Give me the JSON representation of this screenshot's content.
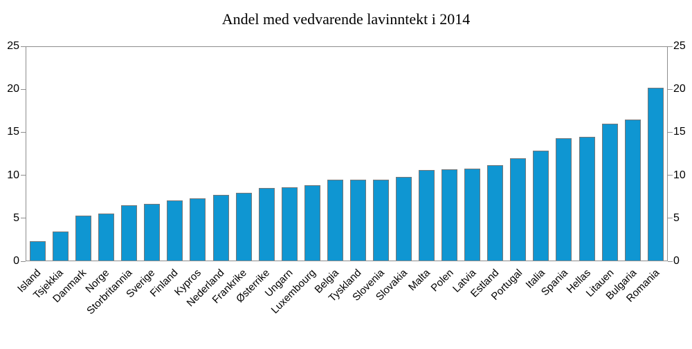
{
  "chart_data": {
    "type": "bar",
    "title": "Andel med vedvarende lavinntekt i 2014",
    "xlabel": "",
    "ylabel": "",
    "categories": [
      "Island",
      "Tsjekkia",
      "Danmark",
      "Norge",
      "Storbritannia",
      "Sverige",
      "Finland",
      "Kypros",
      "Nederland",
      "Frankrike",
      "Østerrike",
      "Ungarn",
      "Luxembourg",
      "Belgia",
      "Tyskland",
      "Slovenia",
      "Slovakia",
      "Malta",
      "Polen",
      "Latvia",
      "Estland",
      "Portugal",
      "Italia",
      "Spania",
      "Hellas",
      "Litauen",
      "Bulgaria",
      "Romania"
    ],
    "values": [
      2.3,
      3.4,
      5.3,
      5.5,
      6.5,
      6.6,
      7.0,
      7.3,
      7.7,
      7.9,
      8.5,
      8.6,
      8.8,
      9.5,
      9.5,
      9.5,
      9.8,
      10.6,
      10.7,
      10.8,
      11.2,
      12.0,
      12.9,
      14.3,
      14.5,
      16.0,
      16.5,
      20.2
    ],
    "ylim": [
      0,
      25
    ],
    "yticks": [
      0,
      5,
      10,
      15,
      20,
      25
    ],
    "y_axis_sides": [
      "left",
      "right"
    ],
    "grid": false,
    "bar_color": "#0f96d2",
    "bar_border_color": "#767676",
    "axis_color": "#8c8c8c"
  }
}
